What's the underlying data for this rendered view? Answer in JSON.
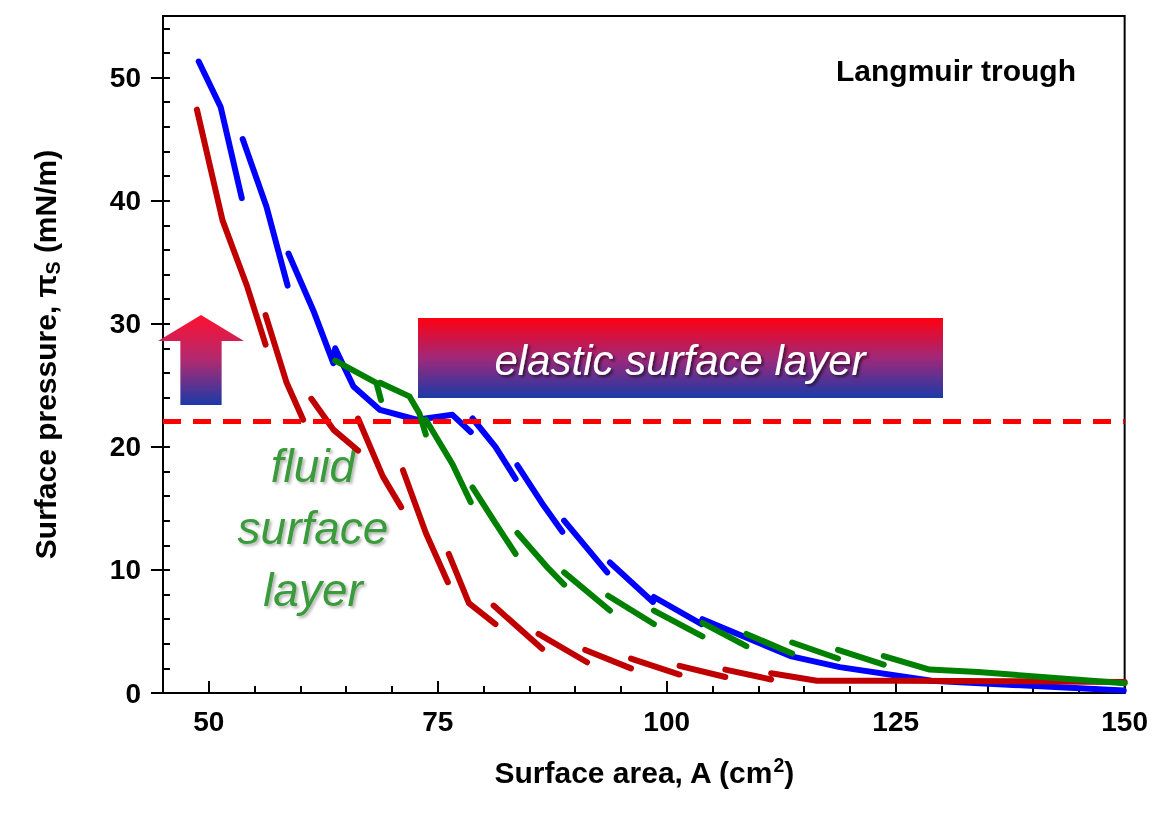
{
  "chart_data": {
    "type": "line",
    "title": "Langmuir trough",
    "xlabel": "Surface area, A (cm$^{2}$)",
    "ylabel": "Surface pressure, π$_{S}$ (mN/m)",
    "xlim": [
      45,
      150
    ],
    "xticks": [
      50,
      75,
      100,
      125,
      150
    ],
    "ylim": [
      0,
      55
    ],
    "yticks": [
      0,
      10,
      20,
      30,
      40,
      50
    ],
    "line_style": "solid",
    "series": [
      {
        "color": "#0000ff",
        "x": [
          48.9,
          51.3,
          53.6,
          null,
          53.7,
          56.3,
          58.6,
          null,
          58.7,
          61.4,
          63.6,
          63.8,
          65.8,
          68.7,
          72.7,
          76.6,
          78.6,
          null,
          78.8,
          81.3,
          83.5,
          null,
          83.7,
          86.4,
          88.6,
          null,
          88.8,
          93.5,
          null,
          93.8,
          98.5,
          null,
          98.6,
          103.8,
          null,
          103.9,
          113.5,
          118.9,
          128.9,
          149.9
        ],
        "values": [
          51.3,
          47.6,
          40.2,
          null,
          45.0,
          39.5,
          33.1,
          null,
          35.7,
          31.1,
          26.8,
          28.0,
          24.9,
          23.0,
          22.2,
          22.6,
          21.2,
          null,
          22.3,
          20.0,
          17.4,
          null,
          18.5,
          15.4,
          13.1,
          null,
          14.0,
          9.8,
          null,
          10.6,
          7.4,
          null,
          7.8,
          5.6,
          null,
          6.0,
          3.0,
          2.1,
          1.0,
          0.2
        ]
      },
      {
        "color": "#c00000",
        "x": [
          48.7,
          51.5,
          54.2,
          56.2,
          null,
          56.2,
          58.5,
          60.0,
          60.3,
          null,
          61.2,
          63.6,
          66.3,
          null,
          66.3,
          69.0,
          71.0,
          null,
          71.2,
          73.7,
          76.1,
          null,
          76.2,
          78.4,
          81.3,
          null,
          81.1,
          86.4,
          null,
          86.0,
          91.3,
          null,
          91.1,
          96.1,
          null,
          96.1,
          101.4,
          null,
          101.4,
          106.4,
          null,
          106.4,
          111.4,
          null,
          111.4,
          116.4,
          124.8,
          150
        ],
        "values": [
          47.4,
          38.4,
          33.0,
          28.3,
          null,
          30.7,
          25.2,
          22.7,
          22.2,
          null,
          23.9,
          21.4,
          19.7,
          null,
          22.3,
          17.6,
          15.1,
          null,
          18.1,
          13.0,
          9.0,
          null,
          11.3,
          7.3,
          5.6,
          null,
          7.1,
          3.6,
          null,
          4.8,
          2.5,
          null,
          3.5,
          2.0,
          null,
          2.8,
          1.5,
          null,
          2.2,
          1.3,
          null,
          1.9,
          1.1,
          null,
          1.6,
          1.0,
          1.0,
          0.9
        ]
      },
      {
        "color": "#008000",
        "x": [
          63.8,
          68.3,
          68.8,
          null,
          68.7,
          71.9,
          73.0,
          73.7,
          null,
          73.7,
          76.6,
          78.6,
          null,
          78.8,
          81.3,
          83.5,
          null,
          83.7,
          87.1,
          88.8,
          null,
          88.8,
          93.8,
          null,
          93.6,
          98.6,
          null,
          98.6,
          103.9,
          null,
          103.9,
          108.7,
          null,
          108.7,
          113.7,
          null,
          113.7,
          118.7,
          null,
          118.7,
          123.7,
          null,
          123.7,
          128.7,
          134.0,
          150
        ],
        "values": [
          27.0,
          25.2,
          23.8,
          null,
          25.2,
          24.1,
          22.7,
          21.0,
          null,
          22.2,
          18.6,
          15.5,
          null,
          16.7,
          13.8,
          11.3,
          null,
          13.0,
          10.1,
          8.8,
          null,
          9.8,
          6.7,
          null,
          7.9,
          5.6,
          null,
          6.7,
          4.6,
          null,
          5.7,
          3.8,
          null,
          4.8,
          3.2,
          null,
          4.1,
          2.8,
          null,
          3.5,
          2.3,
          null,
          3.0,
          1.9,
          1.7,
          0.8
        ]
      }
    ],
    "ref_lines": [
      {
        "axis": "y",
        "value": 22.1,
        "color": "#ff0000",
        "line_style": "dashed"
      }
    ],
    "annotations": [
      "elastic surface layer",
      "fluid surface layer"
    ]
  }
}
